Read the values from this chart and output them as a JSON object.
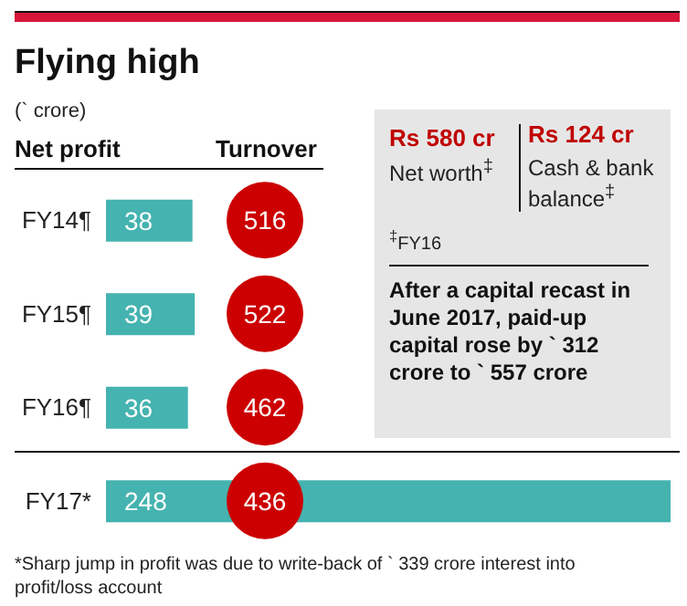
{
  "chart_data": [
    {
      "type": "bar",
      "title": "Flying high",
      "subtitle": "(` crore)",
      "orientation": "horizontal",
      "categories": [
        "FY14¶",
        "FY15¶",
        "FY16¶",
        "FY17*"
      ],
      "series": [
        {
          "name": "Net profit",
          "color": "#45b3b0",
          "values": [
            38,
            39,
            36,
            248
          ]
        }
      ],
      "data_labels": true,
      "annotations": [
        "*Sharp jump in profit was due to write-back of ` 339 crore interest into profit/loss account"
      ]
    },
    {
      "type": "other",
      "title": "Turnover",
      "values": [
        516,
        522,
        462,
        436
      ],
      "colors": [
        "#cc0000",
        "#cc0000",
        "#cc0000",
        "#cc0000"
      ],
      "data_labels": true
    },
    {
      "type": "other",
      "annotations": [
        "Rs 580 cr",
        "Net worth$^{‡}$",
        "Rs 124 cr",
        "Cash & bank balance$^{‡}$",
        "$^{‡}$FY16",
        "After a capital recast in June 2017, paid-up capital rose by ` 312 crore to ` 557 crore"
      ]
    }
  ]
}
